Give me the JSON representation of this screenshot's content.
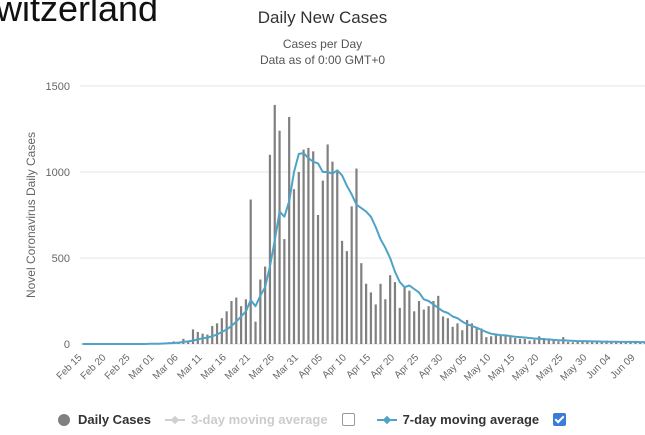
{
  "page": {
    "crop_title": "witzerland"
  },
  "chart_data": {
    "type": "bar",
    "title": "Daily New Cases",
    "subtitle_lines": [
      "Cases per Day",
      "Data as of 0:00 GMT+0"
    ],
    "ylabel": "Novel Coronavirus Daily Cases",
    "ylim": [
      0,
      1500
    ],
    "yticks": [
      0,
      500,
      1000,
      1500
    ],
    "grid": true,
    "xticks": [
      "Feb 15",
      "Feb 20",
      "Feb 25",
      "Mar 01",
      "Mar 06",
      "Mar 11",
      "Mar 16",
      "Mar 21",
      "Mar 26",
      "Mar 31",
      "Apr 05",
      "Apr 10",
      "Apr 15",
      "Apr 20",
      "Apr 25",
      "Apr 30",
      "May 05",
      "May 10",
      "May 15",
      "May 20",
      "May 25",
      "May 30",
      "Jun 04",
      "Jun 09"
    ],
    "start_date": "Feb 15",
    "daily_cases": [
      0,
      0,
      0,
      0,
      0,
      0,
      0,
      0,
      0,
      0,
      0,
      0,
      1,
      0,
      5,
      3,
      4,
      8,
      10,
      15,
      12,
      30,
      20,
      85,
      70,
      60,
      55,
      105,
      120,
      150,
      190,
      250,
      270,
      220,
      260,
      840,
      130,
      375,
      450,
      1100,
      1390,
      1240,
      610,
      1320,
      900,
      1000,
      1130,
      1140,
      1120,
      750,
      950,
      1160,
      1060,
      1000,
      600,
      540,
      800,
      1020,
      470,
      350,
      300,
      230,
      350,
      260,
      400,
      360,
      210,
      330,
      310,
      190,
      250,
      200,
      220,
      250,
      280,
      160,
      150,
      100,
      120,
      80,
      140,
      120,
      95,
      90,
      40,
      45,
      60,
      55,
      55,
      40,
      35,
      30,
      30,
      20,
      25,
      45,
      35,
      25,
      20,
      15,
      40,
      12,
      10,
      15,
      20,
      18,
      10,
      15,
      12,
      20,
      10,
      14,
      8,
      12,
      10,
      15,
      8,
      14
    ],
    "series": [
      {
        "name": "Daily Cases",
        "color": "#808080",
        "visible": true
      },
      {
        "name": "3-day moving average",
        "color": "#cccccc",
        "visible": false
      },
      {
        "name": "7-day moving average",
        "color": "#4fa3c7",
        "visible": true,
        "values": [
          0,
          0,
          0,
          0,
          0,
          0,
          0,
          0,
          0,
          0,
          0,
          0,
          0,
          0,
          1,
          1,
          2,
          3,
          4,
          6,
          8,
          12,
          15,
          20,
          27,
          33,
          37,
          45,
          55,
          70,
          85,
          105,
          130,
          160,
          190,
          255,
          220,
          280,
          330,
          450,
          600,
          770,
          740,
          830,
          1000,
          1105,
          1110,
          1080,
          1060,
          1050,
          1000,
          1000,
          990,
          1010,
          980,
          920,
          870,
          810,
          790,
          770,
          740,
          680,
          610,
          560,
          500,
          420,
          360,
          330,
          340,
          320,
          300,
          260,
          250,
          230,
          210,
          190,
          180,
          160,
          150,
          130,
          115,
          105,
          95,
          82,
          70,
          60,
          55,
          52,
          50,
          46,
          42,
          40,
          38,
          35,
          32,
          30,
          28,
          27,
          24,
          22,
          21,
          20,
          18,
          17,
          17,
          16,
          15,
          15,
          14,
          13,
          13,
          13,
          12,
          12,
          12,
          12,
          11,
          11
        ]
      }
    ],
    "legend": [
      {
        "label": "Daily Cases",
        "marker": "dot",
        "color": "#808080",
        "checkbox": null
      },
      {
        "label": "3-day moving average",
        "marker": "line-diamond",
        "color": "#cccccc",
        "checkbox": false
      },
      {
        "label": "7-day moving average",
        "marker": "line-diamond",
        "color": "#4fa3c7",
        "checkbox": true
      }
    ],
    "legend_position": "bottom"
  }
}
